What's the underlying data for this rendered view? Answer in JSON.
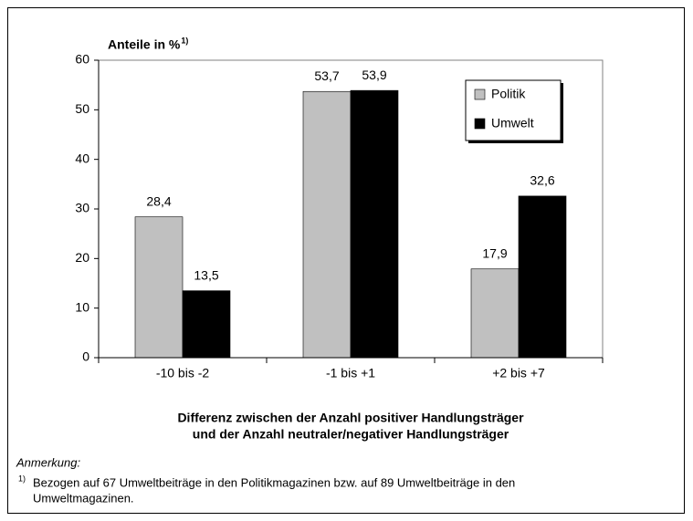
{
  "chart_data": {
    "type": "bar",
    "ylabel": "Anteile in %",
    "ylabel_marker": "1)",
    "xlabel": [
      "Differenz zwischen der Anzahl positiver Handlungsträger",
      "und der Anzahl neutraler/negativer Handlungsträger"
    ],
    "categories": [
      "-10 bis -2",
      "-1 bis +1",
      "+2 bis +7"
    ],
    "series": [
      {
        "name": "Politik",
        "color": "#c0c0c0",
        "values": [
          28.4,
          53.7,
          17.9
        ],
        "value_labels": [
          "28,4",
          "53,7",
          "17,9"
        ]
      },
      {
        "name": "Umwelt",
        "color": "#000000",
        "values": [
          13.5,
          53.9,
          32.6
        ],
        "value_labels": [
          "13,5",
          "53,9",
          "32,6"
        ]
      }
    ],
    "ylim": [
      0,
      60
    ],
    "yticks": [
      0,
      10,
      20,
      30,
      40,
      50,
      60
    ],
    "grid": false,
    "legend": "upper right"
  },
  "notes": {
    "heading": "Anmerkung:",
    "marker": "1)",
    "lines": [
      "Bezogen auf 67 Umweltbeiträge in den Politikmagazinen bzw. auf 89 Umweltbeiträge in den",
      "Umweltmagazinen."
    ]
  }
}
